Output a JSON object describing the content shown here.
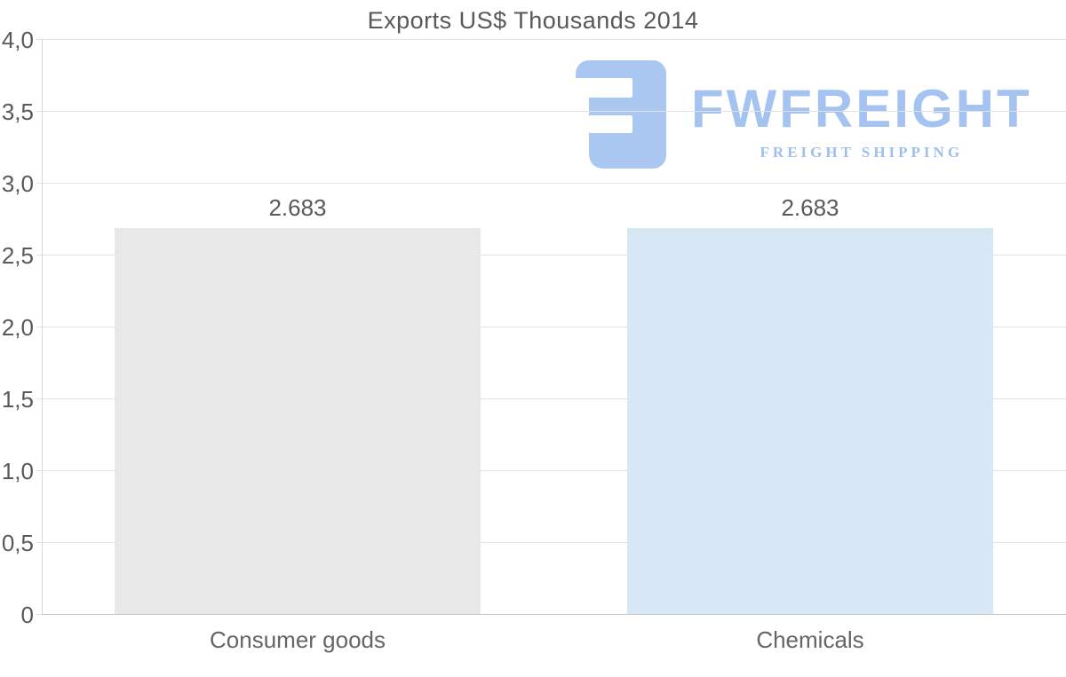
{
  "logo": {
    "name": "FWFREIGHT",
    "tagline": "FREIGHT SHIPPING",
    "mark_color": "#aac7f1",
    "name_color": "#a5c3f0",
    "tagline_color": "#9dbfee"
  },
  "chart_data": {
    "type": "bar",
    "title": "Exports US$ Thousands 2014",
    "categories": [
      "Consumer goods",
      "Chemicals"
    ],
    "values": [
      2.683,
      2.683
    ],
    "value_labels": [
      "2.683",
      "2.683"
    ],
    "bar_colors": [
      "#e8e8e8",
      "#d8e7f6"
    ],
    "ylim": [
      0,
      4
    ],
    "yticks": [
      {
        "value": 0,
        "label": "0"
      },
      {
        "value": 0.5,
        "label": "0,5"
      },
      {
        "value": 1,
        "label": "1,0"
      },
      {
        "value": 1.5,
        "label": "1,5"
      },
      {
        "value": 2,
        "label": "2,0"
      },
      {
        "value": 2.5,
        "label": "2,5"
      },
      {
        "value": 3,
        "label": "3,0"
      },
      {
        "value": 3.5,
        "label": "3,5"
      },
      {
        "value": 4,
        "label": "4,0"
      }
    ],
    "grid": true,
    "legend": false,
    "colors": {
      "gridline": "#e2e2e2",
      "baseline": "#c9c9c9",
      "axis": "#d6d6d6",
      "text": "#595959",
      "category_text": "#656565"
    }
  }
}
